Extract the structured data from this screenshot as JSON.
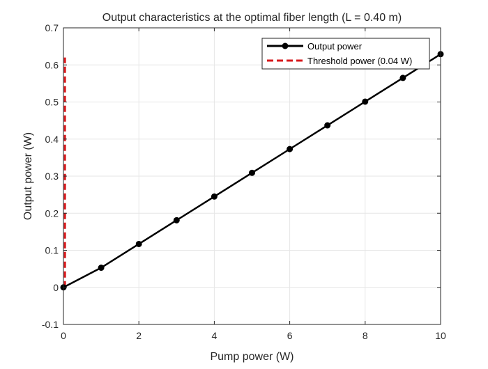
{
  "chart_data": {
    "type": "line",
    "title": "Output characteristics at the optimal fiber length (L = 0.40 m)",
    "xlabel": "Pump power (W)",
    "ylabel": "Output power (W)",
    "xlim": [
      0,
      10
    ],
    "ylim": [
      -0.1,
      0.7
    ],
    "xticks": [
      0,
      2,
      4,
      6,
      8,
      10
    ],
    "yticks": [
      -0.1,
      0,
      0.1,
      0.2,
      0.3,
      0.4,
      0.5,
      0.6,
      0.7
    ],
    "xtick_labels": [
      "0",
      "2",
      "4",
      "6",
      "8",
      "10"
    ],
    "ytick_labels": [
      "-0.1",
      "0",
      "0.1",
      "0.2",
      "0.3",
      "0.4",
      "0.5",
      "0.6",
      "0.7"
    ],
    "grid": true,
    "legend_position": "top-right",
    "series": [
      {
        "name": "Output power",
        "style": "solid-line-with-circle-markers",
        "color": "#000000",
        "x": [
          0,
          1,
          2,
          3,
          4,
          5,
          6,
          7,
          8,
          9,
          10
        ],
        "y": [
          0,
          0.053,
          0.117,
          0.181,
          0.245,
          0.309,
          0.373,
          0.437,
          0.501,
          0.565,
          0.629
        ]
      },
      {
        "name": "Threshold power (0.04 W)",
        "style": "dashed-vertical-line",
        "color": "#d7191c",
        "x": [
          0.04,
          0.04
        ],
        "y": [
          0,
          0.62
        ]
      }
    ]
  }
}
